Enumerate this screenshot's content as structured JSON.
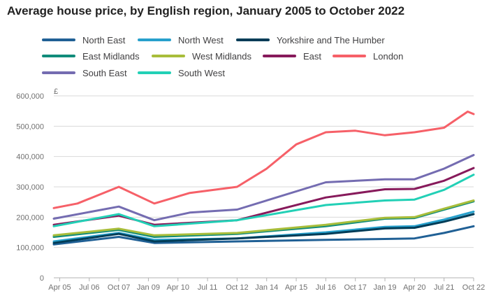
{
  "title": "Average house price, by English region, January 2005 to October 2022",
  "chart_data": {
    "type": "line",
    "title": "Average house price, by English region, January 2005 to October 2022",
    "ylabel": "£",
    "ylim": [
      0,
      600000
    ],
    "yticks": [
      0,
      100000,
      200000,
      300000,
      400000,
      500000,
      600000
    ],
    "ytick_labels": [
      "0",
      "100,000",
      "200,000",
      "300,000",
      "400,000",
      "500,000",
      "600,000"
    ],
    "xlim": [
      "2005-01",
      "2022-10"
    ],
    "xtick_labels": [
      "Apr 05",
      "Jul 06",
      "Oct 07",
      "Jan 09",
      "Apr 10",
      "Jul 11",
      "Oct 12",
      "Jan 14",
      "Apr 15",
      "Jul 16",
      "Oct 17",
      "Jan 19",
      "Apr 20",
      "Jul 21",
      "Oct 22"
    ],
    "xtick_dates": [
      "2005-04",
      "2006-07",
      "2007-10",
      "2009-01",
      "2010-04",
      "2011-07",
      "2012-10",
      "2014-01",
      "2015-04",
      "2016-07",
      "2017-10",
      "2019-01",
      "2020-04",
      "2021-07",
      "2022-10"
    ],
    "grid": "horizontal",
    "legend_position": "top",
    "series": [
      {
        "name": "North East",
        "color": "#206095",
        "x": [
          "2005-01",
          "2007-10",
          "2009-04",
          "2012-10",
          "2016-07",
          "2019-01",
          "2020-04",
          "2021-07",
          "2022-10"
        ],
        "values": [
          110000,
          135000,
          115000,
          120000,
          125000,
          128000,
          130000,
          148000,
          170000
        ]
      },
      {
        "name": "North West",
        "color": "#27a0cc",
        "x": [
          "2005-01",
          "2007-10",
          "2009-04",
          "2012-10",
          "2016-07",
          "2019-01",
          "2020-04",
          "2021-07",
          "2022-10"
        ],
        "values": [
          120000,
          148000,
          125000,
          130000,
          150000,
          168000,
          170000,
          192000,
          218000
        ]
      },
      {
        "name": "Yorkshire and The Humber",
        "color": "#003c57",
        "x": [
          "2005-01",
          "2007-10",
          "2009-04",
          "2012-10",
          "2016-07",
          "2019-01",
          "2020-04",
          "2021-07",
          "2022-10"
        ],
        "values": [
          115000,
          145000,
          120000,
          130000,
          145000,
          163000,
          165000,
          185000,
          210000
        ]
      },
      {
        "name": "East Midlands",
        "color": "#118c7b",
        "x": [
          "2005-01",
          "2007-10",
          "2009-04",
          "2012-10",
          "2016-07",
          "2019-01",
          "2020-04",
          "2021-07",
          "2022-10"
        ],
        "values": [
          135000,
          158000,
          135000,
          145000,
          170000,
          195000,
          197000,
          225000,
          252000
        ]
      },
      {
        "name": "West Midlands",
        "color": "#a8bd3a",
        "x": [
          "2005-01",
          "2007-10",
          "2009-04",
          "2012-10",
          "2016-07",
          "2019-01",
          "2020-04",
          "2021-07",
          "2022-10"
        ],
        "values": [
          140000,
          162000,
          140000,
          148000,
          175000,
          198000,
          200000,
          228000,
          255000
        ]
      },
      {
        "name": "East",
        "color": "#871a5b",
        "x": [
          "2005-01",
          "2007-10",
          "2009-04",
          "2012-10",
          "2016-07",
          "2019-01",
          "2020-04",
          "2021-07",
          "2022-10"
        ],
        "values": [
          175000,
          205000,
          175000,
          190000,
          265000,
          292000,
          293000,
          320000,
          362000
        ]
      },
      {
        "name": "London",
        "color": "#f66068",
        "x": [
          "2005-01",
          "2006-01",
          "2007-10",
          "2009-04",
          "2010-10",
          "2012-10",
          "2014-01",
          "2015-04",
          "2016-07",
          "2017-10",
          "2019-01",
          "2020-04",
          "2021-07",
          "2022-07",
          "2022-10"
        ],
        "values": [
          230000,
          245000,
          300000,
          245000,
          280000,
          300000,
          360000,
          440000,
          480000,
          485000,
          470000,
          480000,
          495000,
          548000,
          540000
        ]
      },
      {
        "name": "South East",
        "color": "#746cb1",
        "x": [
          "2005-01",
          "2007-10",
          "2009-04",
          "2010-10",
          "2012-10",
          "2016-07",
          "2019-01",
          "2020-04",
          "2021-07",
          "2022-10"
        ],
        "values": [
          195000,
          235000,
          190000,
          215000,
          225000,
          315000,
          325000,
          325000,
          360000,
          405000
        ]
      },
      {
        "name": "South West",
        "color": "#22d0b6",
        "x": [
          "2005-01",
          "2007-10",
          "2009-04",
          "2012-10",
          "2016-07",
          "2019-01",
          "2020-04",
          "2021-07",
          "2022-10"
        ],
        "values": [
          170000,
          210000,
          170000,
          190000,
          240000,
          255000,
          258000,
          290000,
          340000
        ]
      }
    ]
  }
}
